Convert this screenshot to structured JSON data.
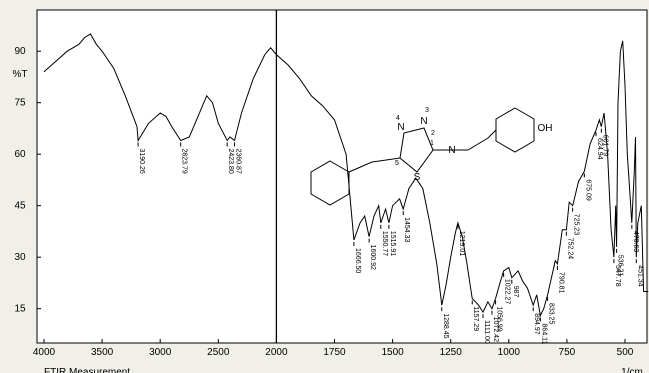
{
  "chart_data": {
    "type": "line",
    "y_label": "%T",
    "x_label": "1/cm",
    "footer": "FTIR Measurement",
    "color": "#000000",
    "xlim": [
      4000,
      400
    ],
    "ylim": [
      5,
      102
    ],
    "xticks": [
      4000,
      3500,
      3000,
      2500,
      2000,
      1750,
      1500,
      1250,
      1000,
      750,
      500
    ],
    "yticks": [
      15,
      30,
      45,
      60,
      75,
      90
    ],
    "scale_break": 2000,
    "x": [
      4000,
      3900,
      3800,
      3700,
      3650,
      3600,
      3550,
      3500,
      3400,
      3300,
      3200,
      3190.26,
      3100,
      3000,
      2950,
      2900,
      2823.79,
      2750,
      2700,
      2600,
      2550,
      2500,
      2423.8,
      2400,
      2360.87,
      2300,
      2200,
      2100,
      2050,
      2000,
      1950,
      1900,
      1850,
      1800,
      1750,
      1700,
      1680,
      1666.5,
      1640,
      1620,
      1600.92,
      1580,
      1560,
      1550.77,
      1530,
      1515.91,
      1500,
      1470,
      1454.33,
      1430,
      1400,
      1370,
      1340,
      1310,
      1288.45,
      1270,
      1250,
      1230,
      1219.01,
      1200,
      1180,
      1157.29,
      1130,
      1111,
      1090,
      1072.42,
      1056.99,
      1040,
      1022.27,
      1000,
      987,
      960,
      940,
      920,
      894.97,
      880,
      864.11,
      850,
      833.25,
      800,
      790.81,
      770,
      752.24,
      740,
      725.23,
      700,
      675.09,
      650,
      624.94,
      610,
      601.79,
      590,
      575,
      560,
      547.78,
      540,
      536.21,
      530,
      520,
      510,
      500,
      490,
      480,
      470.63,
      460,
      455,
      451.34,
      445,
      430,
      420,
      400
    ],
    "values": [
      84,
      87,
      90,
      92,
      94,
      95,
      92,
      90,
      85,
      77,
      68,
      64,
      69,
      72,
      71,
      68,
      64,
      65,
      69,
      77,
      75,
      69,
      64,
      65,
      64,
      72,
      82,
      89,
      91,
      89,
      86,
      82,
      77,
      74,
      70,
      60,
      45,
      35,
      40,
      42,
      36,
      42,
      45,
      40,
      44,
      40,
      45,
      47,
      44,
      50,
      53,
      50,
      40,
      28,
      16,
      22,
      30,
      37,
      40,
      36,
      28,
      18,
      16,
      14,
      17,
      15,
      18,
      22,
      26,
      27,
      24,
      26,
      23,
      21,
      16,
      19,
      13,
      15,
      19,
      29,
      28,
      38,
      38,
      46,
      45,
      52,
      55,
      63,
      67,
      70,
      68,
      72,
      60,
      38,
      30,
      45,
      33,
      75,
      90,
      93,
      80,
      60,
      50,
      40,
      55,
      65,
      30,
      40,
      45,
      20,
      20
    ],
    "peaks": [
      {
        "value": 3190.26,
        "label": "3190.26"
      },
      {
        "value": 2823.79,
        "label": "2823.79"
      },
      {
        "value": 2423.8,
        "label": "2423.80"
      },
      {
        "value": 2360.87,
        "label": "2360.87"
      },
      {
        "value": 1666.5,
        "label": "1666.50"
      },
      {
        "value": 1600.92,
        "label": "1600.92"
      },
      {
        "value": 1550.77,
        "label": "1550.77"
      },
      {
        "value": 1515.91,
        "label": "1515.91"
      },
      {
        "value": 1454.33,
        "label": "1454.33"
      },
      {
        "value": 1288.45,
        "label": "1288.45"
      },
      {
        "value": 1219.01,
        "label": "1219.01"
      },
      {
        "value": 1157.29,
        "label": "1157.29"
      },
      {
        "value": 1111,
        "label": "1111.00"
      },
      {
        "value": 1072.42,
        "label": "1072.42"
      },
      {
        "value": 1056.99,
        "label": "1056.99"
      },
      {
        "value": 1022.27,
        "label": "1022.27"
      },
      {
        "value": 987,
        "label": "987"
      },
      {
        "value": 894.97,
        "label": "894.97"
      },
      {
        "value": 864.11,
        "label": "864.11"
      },
      {
        "value": 833.25,
        "label": "833.25"
      },
      {
        "value": 790.81,
        "label": "790.81"
      },
      {
        "value": 752.24,
        "label": "752.24"
      },
      {
        "value": 725.23,
        "label": "725.23"
      },
      {
        "value": 675.09,
        "label": "675.09"
      },
      {
        "value": 624.94,
        "label": "624.94"
      },
      {
        "value": 601.79,
        "label": "601.79"
      },
      {
        "value": 547.78,
        "label": "547.78"
      },
      {
        "value": 536.21,
        "label": "536.21"
      },
      {
        "value": 470.63,
        "label": "470.63"
      },
      {
        "value": 451.34,
        "label": "451.34"
      }
    ],
    "structure": {
      "atoms": [
        "N",
        "N",
        "S",
        "N",
        "OH"
      ],
      "numbers": [
        "1",
        "2",
        "3",
        "4",
        "5"
      ]
    }
  }
}
